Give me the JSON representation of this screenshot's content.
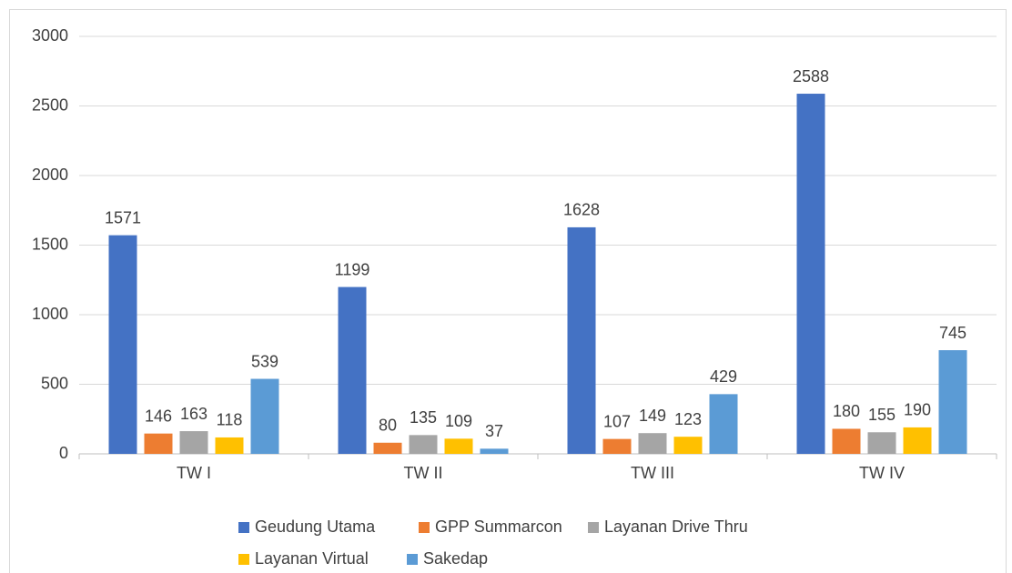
{
  "chart_data": {
    "type": "bar",
    "categories": [
      "TW I",
      "TW II",
      "TW III",
      "TW IV"
    ],
    "series": [
      {
        "name": "Geudung Utama",
        "color": "#4472c4",
        "values": [
          1571,
          1199,
          1628,
          2588
        ]
      },
      {
        "name": "GPP Summarcon",
        "color": "#ed7d31",
        "values": [
          146,
          80,
          107,
          180
        ]
      },
      {
        "name": "Layanan Drive Thru",
        "color": "#a5a5a5",
        "values": [
          163,
          135,
          149,
          155
        ]
      },
      {
        "name": "Layanan Virtual",
        "color": "#ffc000",
        "values": [
          118,
          109,
          123,
          190
        ]
      },
      {
        "name": "Sakedap",
        "color": "#5b9bd5",
        "values": [
          539,
          37,
          429,
          745
        ]
      }
    ],
    "ylim": [
      0,
      3000
    ],
    "yticks": [
      0,
      500,
      1000,
      1500,
      2000,
      2500,
      3000
    ],
    "grid": true,
    "legend": "bottom"
  }
}
